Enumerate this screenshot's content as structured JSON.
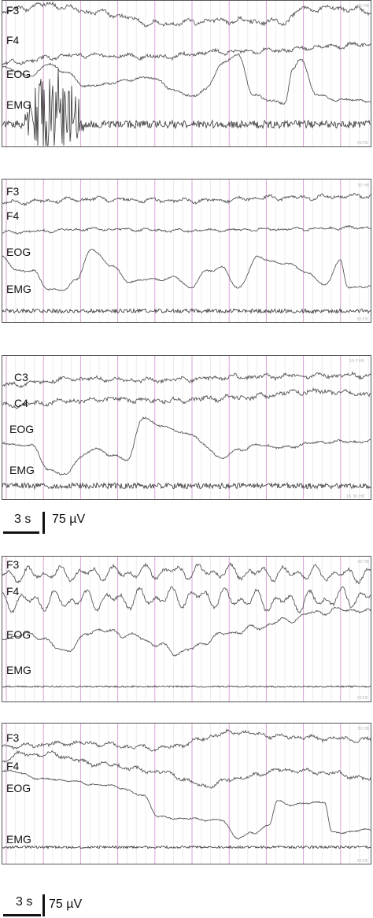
{
  "panels": [
    {
      "labels": [
        "F3",
        "F4",
        "EOG",
        "EMG"
      ],
      "corner_text": [
        "30 HB",
        "61F.B"
      ],
      "traces": [
        {
          "kind": "eeg",
          "amp": 4,
          "noise": 2.2,
          "points": [
            [
              0,
              14
            ],
            [
              60,
              6
            ],
            [
              120,
              16
            ],
            [
              200,
              30
            ],
            [
              280,
              26
            ],
            [
              360,
              28
            ],
            [
              380,
              12
            ],
            [
              420,
              10
            ],
            [
              470,
              14
            ]
          ]
        },
        {
          "kind": "eeg",
          "amp": 3,
          "noise": 2,
          "points": [
            [
              0,
              80
            ],
            [
              100,
              70
            ],
            [
              200,
              72
            ],
            [
              280,
              66
            ],
            [
              360,
              64
            ],
            [
              400,
              60
            ],
            [
              470,
              56
            ]
          ]
        },
        {
          "kind": "eog",
          "amp": 2,
          "noise": 1.2,
          "points": [
            [
              0,
              86
            ],
            [
              40,
              96
            ],
            [
              60,
              80
            ],
            [
              80,
              92
            ],
            [
              110,
              110
            ],
            [
              150,
              104
            ],
            [
              180,
              98
            ],
            [
              200,
              102
            ],
            [
              220,
              116
            ],
            [
              240,
              122
            ],
            [
              260,
              114
            ],
            [
              280,
              80
            ],
            [
              300,
              70
            ],
            [
              320,
              120
            ],
            [
              340,
              128
            ],
            [
              360,
              130
            ],
            [
              370,
              90
            ],
            [
              380,
              74
            ],
            [
              400,
              120
            ],
            [
              420,
              126
            ],
            [
              470,
              128
            ]
          ]
        },
        {
          "kind": "emg",
          "amp": 0,
          "noise": 5,
          "points": [
            [
              0,
              158
            ],
            [
              470,
              158
            ]
          ]
        }
      ],
      "artifact": {
        "x0": 28,
        "x1": 105,
        "depth": 16
      }
    },
    {
      "labels": [
        "F3",
        "F4",
        "EOG",
        "EMG"
      ],
      "corner_text": [
        "30 HB",
        "61F.B"
      ],
      "traces": [
        {
          "kind": "eeg",
          "amp": 3,
          "noise": 1.6,
          "points": [
            [
              0,
              30
            ],
            [
              120,
              26
            ],
            [
              240,
              28
            ],
            [
              360,
              24
            ],
            [
              470,
              22
            ]
          ]
        },
        {
          "kind": "eeg",
          "amp": 2,
          "noise": 1.2,
          "points": [
            [
              0,
              68
            ],
            [
              120,
              64
            ],
            [
              240,
              66
            ],
            [
              360,
              64
            ],
            [
              470,
              62
            ]
          ]
        },
        {
          "kind": "eog",
          "amp": 2,
          "noise": 0.9,
          "points": [
            [
              0,
              100
            ],
            [
              20,
              116
            ],
            [
              40,
              118
            ],
            [
              60,
              140
            ],
            [
              80,
              142
            ],
            [
              95,
              126
            ],
            [
              115,
              90
            ],
            [
              140,
              110
            ],
            [
              160,
              130
            ],
            [
              190,
              128
            ],
            [
              220,
              126
            ],
            [
              240,
              138
            ],
            [
              260,
              118
            ],
            [
              280,
              112
            ],
            [
              300,
              140
            ],
            [
              325,
              100
            ],
            [
              345,
              105
            ],
            [
              370,
              110
            ],
            [
              390,
              120
            ],
            [
              410,
              136
            ],
            [
              430,
              104
            ],
            [
              440,
              138
            ],
            [
              470,
              136
            ]
          ]
        },
        {
          "kind": "emg",
          "amp": 0,
          "noise": 2.6,
          "points": [
            [
              0,
              168
            ],
            [
              470,
              168
            ]
          ]
        }
      ],
      "artifact": null
    },
    {
      "labels": [
        "C3",
        "C4",
        "EOG",
        "EMG"
      ],
      "corner_text": [
        "10 F.HB",
        "16 30 HB"
      ],
      "traces": [
        {
          "kind": "eeg",
          "amp": 3,
          "noise": 2,
          "points": [
            [
              0,
              38
            ],
            [
              100,
              30
            ],
            [
              200,
              32
            ],
            [
              300,
              28
            ],
            [
              400,
              26
            ],
            [
              470,
              26
            ]
          ]
        },
        {
          "kind": "eeg",
          "amp": 3,
          "noise": 2.4,
          "points": [
            [
              0,
              64
            ],
            [
              100,
              58
            ],
            [
              140,
              56
            ],
            [
              200,
              58
            ],
            [
              300,
              54
            ],
            [
              400,
              46
            ],
            [
              470,
              50
            ]
          ]
        },
        {
          "kind": "eog",
          "amp": 2,
          "noise": 1.2,
          "points": [
            [
              0,
              112
            ],
            [
              40,
              116
            ],
            [
              60,
              146
            ],
            [
              80,
              152
            ],
            [
              100,
              130
            ],
            [
              120,
              118
            ],
            [
              140,
              128
            ],
            [
              160,
              132
            ],
            [
              180,
              80
            ],
            [
              200,
              88
            ],
            [
              220,
              96
            ],
            [
              240,
              100
            ],
            [
              260,
              116
            ],
            [
              280,
              132
            ],
            [
              300,
              120
            ],
            [
              330,
              114
            ],
            [
              360,
              118
            ],
            [
              390,
              112
            ],
            [
              420,
              110
            ],
            [
              470,
              110
            ]
          ]
        },
        {
          "kind": "emg",
          "amp": 0,
          "noise": 3.6,
          "points": [
            [
              0,
              166
            ],
            [
              470,
              166
            ]
          ]
        }
      ],
      "artifact": null
    },
    {
      "labels": [
        "F3",
        "F4",
        "EOG",
        "EMG"
      ],
      "corner_text": [
        "30 HB",
        "61F.B"
      ],
      "traces": [
        {
          "kind": "eeg",
          "amp": 10,
          "noise": 2,
          "points": [
            [
              0,
              24
            ],
            [
              120,
              22
            ],
            [
              240,
              20
            ],
            [
              360,
              22
            ],
            [
              470,
              24
            ]
          ]
        },
        {
          "kind": "eeg",
          "amp": 14,
          "noise": 2,
          "points": [
            [
              0,
              58
            ],
            [
              120,
              56
            ],
            [
              240,
              52
            ],
            [
              360,
              58
            ],
            [
              470,
              52
            ]
          ]
        },
        {
          "kind": "eog",
          "amp": 4,
          "noise": 1.2,
          "points": [
            [
              0,
              104
            ],
            [
              40,
              100
            ],
            [
              80,
              120
            ],
            [
              120,
              94
            ],
            [
              160,
              100
            ],
            [
              200,
              112
            ],
            [
              220,
              124
            ],
            [
              240,
              118
            ],
            [
              280,
              100
            ],
            [
              320,
              92
            ],
            [
              360,
              82
            ],
            [
              400,
              72
            ],
            [
              440,
              68
            ],
            [
              470,
              72
            ]
          ]
        },
        {
          "kind": "emg",
          "amp": 0,
          "noise": 1,
          "points": [
            [
              0,
              166
            ],
            [
              470,
              166
            ]
          ]
        }
      ],
      "artifact": null
    },
    {
      "labels": [
        "F3",
        "F4",
        "EOG",
        "EMG"
      ],
      "corner_text": [
        "30 HB",
        "61F.B"
      ],
      "traces": [
        {
          "kind": "eeg",
          "amp": 3,
          "noise": 1.8,
          "points": [
            [
              0,
              30
            ],
            [
              100,
              26
            ],
            [
              200,
              32
            ],
            [
              300,
              12
            ],
            [
              360,
              18
            ],
            [
              420,
              20
            ],
            [
              470,
              22
            ]
          ]
        },
        {
          "kind": "eeg",
          "amp": 3,
          "noise": 1.8,
          "points": [
            [
              0,
              50
            ],
            [
              20,
              40
            ],
            [
              60,
              40
            ],
            [
              120,
              52
            ],
            [
              200,
              62
            ],
            [
              260,
              80
            ],
            [
              300,
              70
            ],
            [
              360,
              60
            ],
            [
              420,
              64
            ],
            [
              470,
              72
            ]
          ]
        },
        {
          "kind": "eog",
          "amp": 1.5,
          "noise": 0.8,
          "points": [
            [
              0,
              60
            ],
            [
              60,
              72
            ],
            [
              140,
              80
            ],
            [
              180,
              92
            ],
            [
              200,
              120
            ],
            [
              240,
              122
            ],
            [
              280,
              124
            ],
            [
              300,
              146
            ],
            [
              320,
              140
            ],
            [
              340,
              130
            ],
            [
              350,
              100
            ],
            [
              370,
              104
            ],
            [
              410,
              100
            ],
            [
              420,
              140
            ],
            [
              470,
              136
            ]
          ]
        },
        {
          "kind": "emg",
          "amp": 0,
          "noise": 1.6,
          "points": [
            [
              0,
              158
            ],
            [
              470,
              158
            ]
          ]
        }
      ],
      "artifact": null
    }
  ],
  "scale_bars": [
    {
      "time": "3 s",
      "amplitude": "75 µV"
    },
    {
      "time": "3 s",
      "amplitude": "75 µV"
    }
  ]
}
